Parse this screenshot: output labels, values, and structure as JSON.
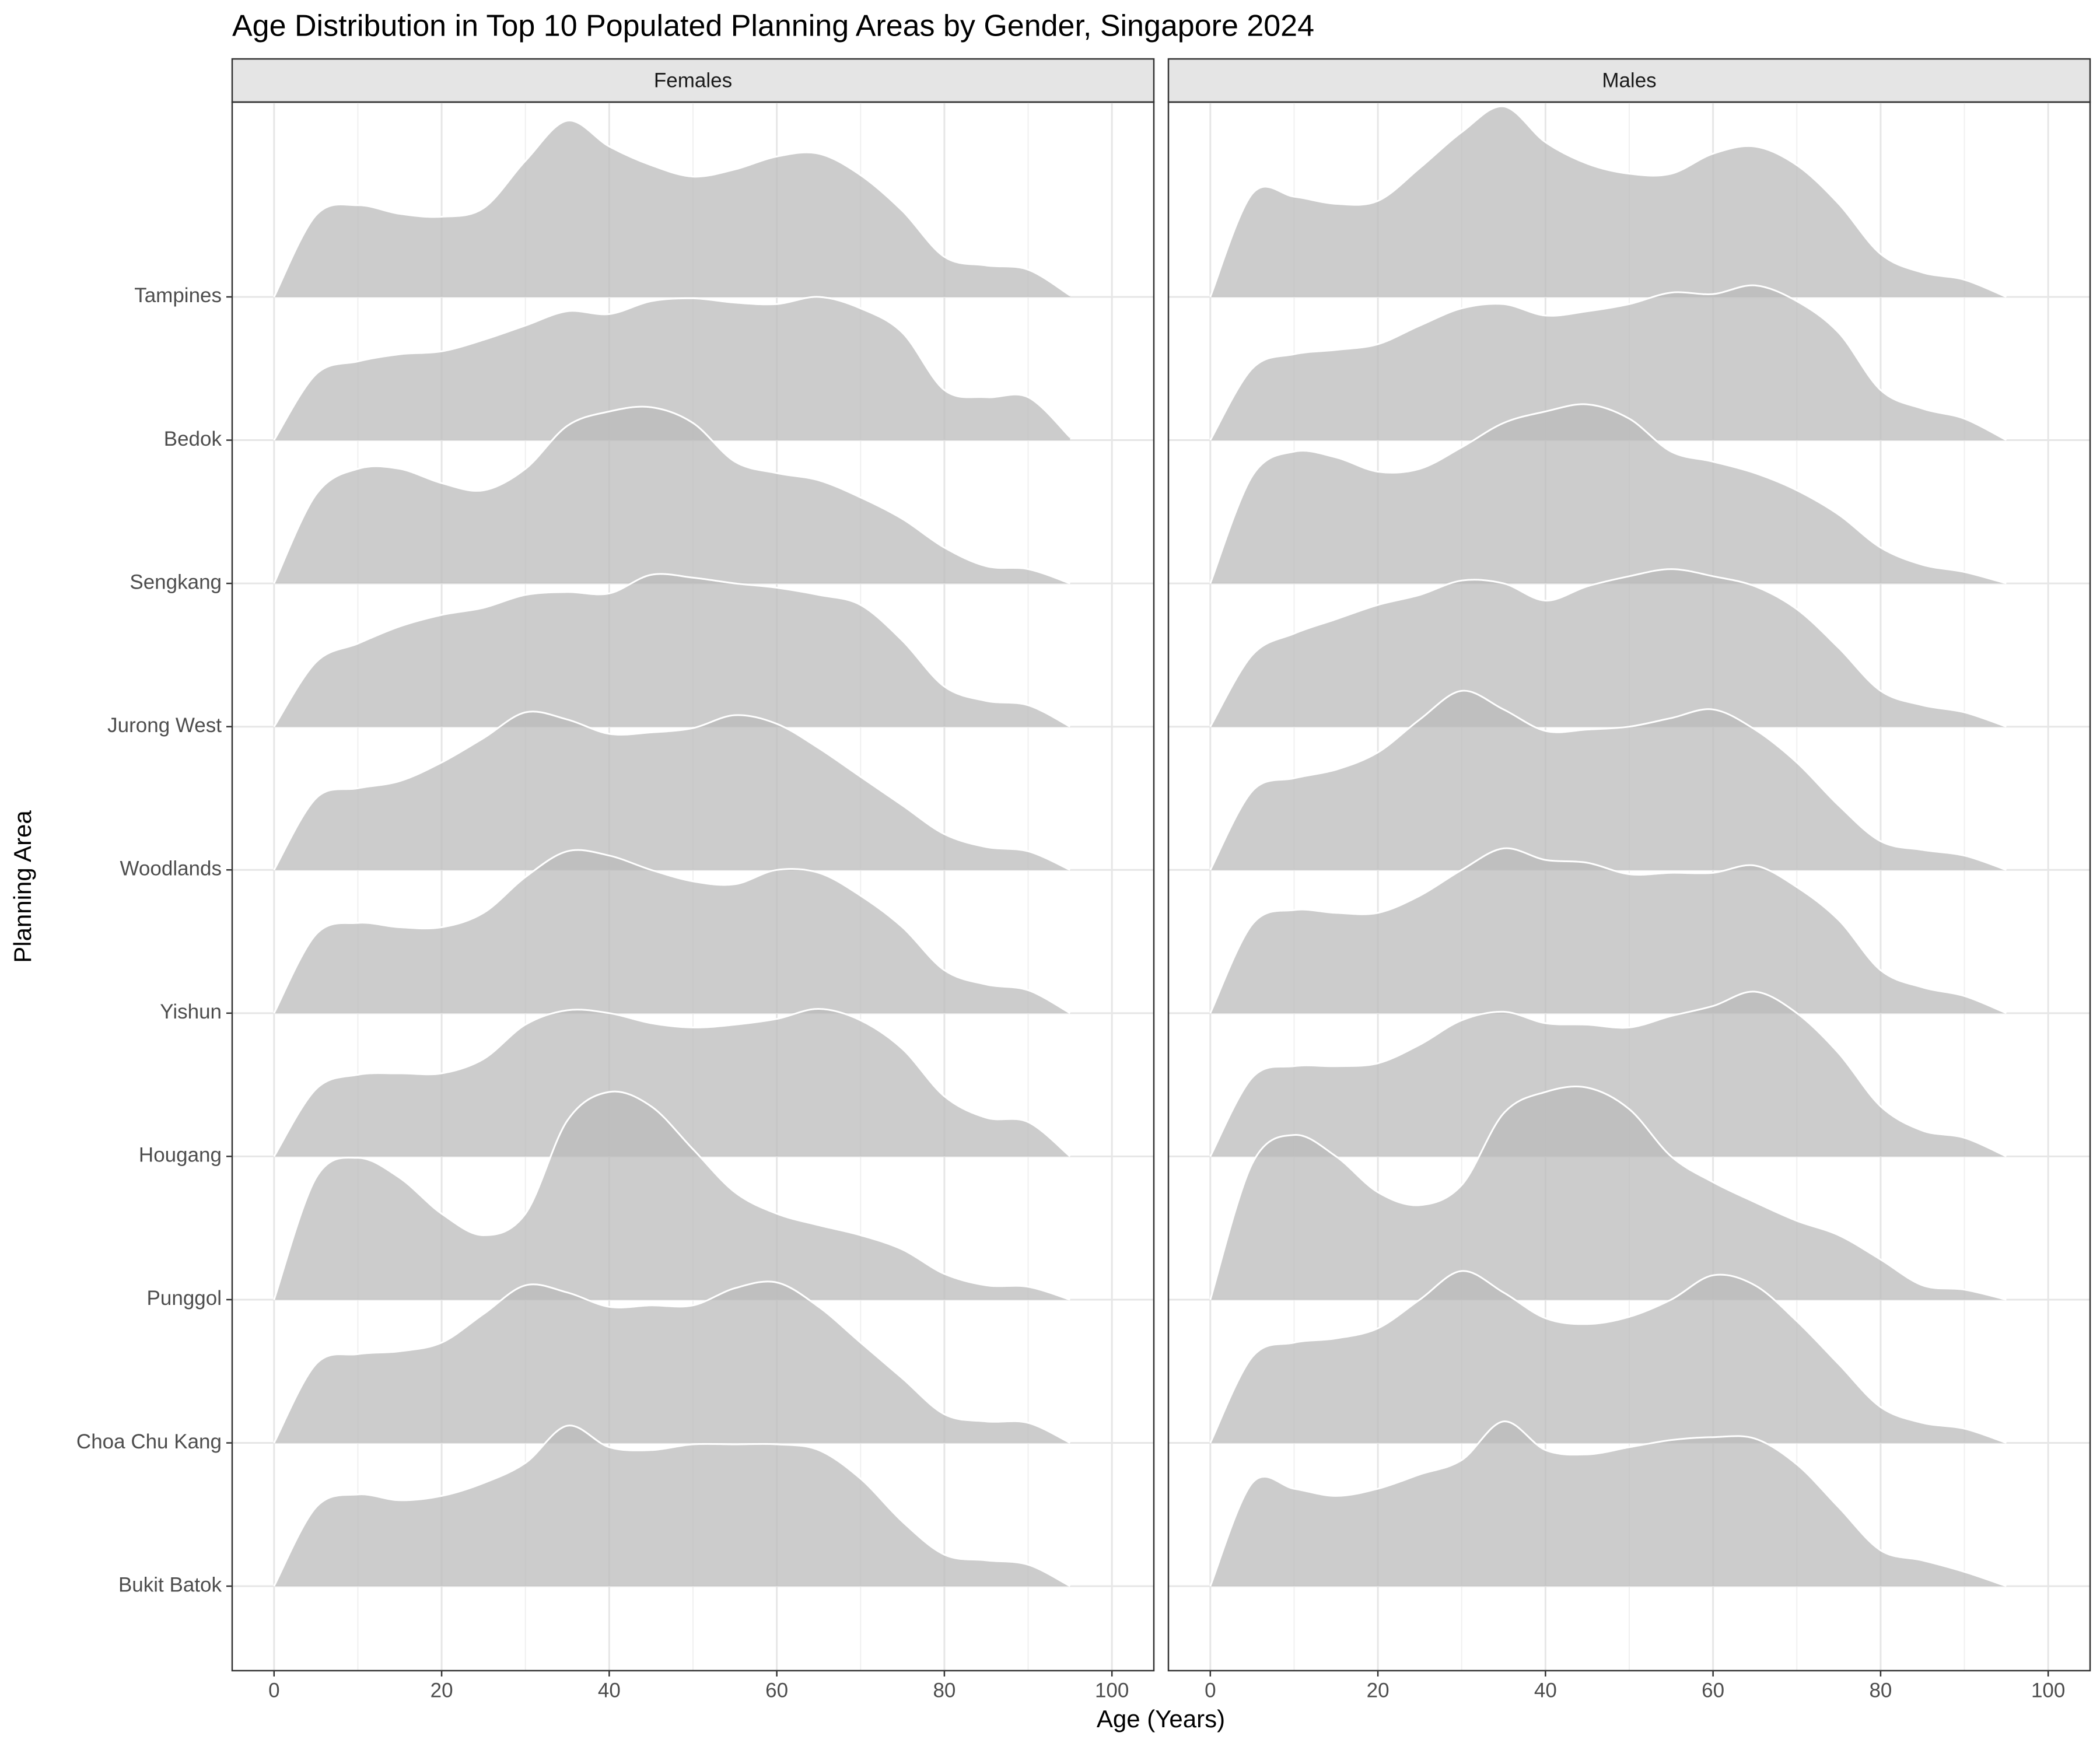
{
  "chart_data": {
    "type": "ridgeline",
    "title": "Age Distribution in Top 10 Populated Planning Areas by Gender, Singapore 2024",
    "xlabel": "Age (Years)",
    "ylabel": "Planning Area",
    "categories": [
      "Tampines",
      "Bedok",
      "Sengkang",
      "Jurong West",
      "Woodlands",
      "Yishun",
      "Hougang",
      "Punggol",
      "Choa Chu Kang",
      "Bukit Batok"
    ],
    "x": [
      0,
      5,
      10,
      15,
      20,
      25,
      30,
      35,
      40,
      45,
      50,
      55,
      60,
      65,
      70,
      75,
      80,
      85,
      90,
      95
    ],
    "xlim": [
      -5,
      105
    ],
    "xticks": [
      0,
      20,
      40,
      60,
      80,
      100
    ],
    "color": "#bbbbbb",
    "opacity": 0.75,
    "outline": "#ffffff",
    "grid": true,
    "facets": [
      {
        "name": "Females",
        "values": [
          [
            0,
            0.57,
            0.64,
            0.58,
            0.56,
            0.62,
            0.95,
            1.23,
            1.05,
            0.92,
            0.84,
            0.89,
            0.98,
            1.0,
            0.85,
            0.6,
            0.28,
            0.22,
            0.19,
            0.01
          ],
          [
            0,
            0.46,
            0.55,
            0.6,
            0.62,
            0.7,
            0.8,
            0.9,
            0.88,
            0.97,
            0.99,
            0.96,
            0.95,
            1.0,
            0.92,
            0.75,
            0.35,
            0.3,
            0.3,
            0.02
          ],
          [
            0,
            0.62,
            0.8,
            0.8,
            0.7,
            0.65,
            0.8,
            1.1,
            1.2,
            1.23,
            1.12,
            0.85,
            0.77,
            0.72,
            0.6,
            0.45,
            0.25,
            0.12,
            0.1,
            0
          ],
          [
            0,
            0.45,
            0.58,
            0.7,
            0.78,
            0.83,
            0.92,
            0.94,
            0.93,
            1.06,
            1.04,
            1.0,
            0.97,
            0.92,
            0.85,
            0.6,
            0.28,
            0.18,
            0.15,
            0
          ],
          [
            0,
            0.5,
            0.57,
            0.62,
            0.75,
            0.92,
            1.1,
            1.05,
            0.95,
            0.96,
            0.99,
            1.08,
            1.02,
            0.85,
            0.65,
            0.45,
            0.25,
            0.16,
            0.13,
            0
          ],
          [
            0,
            0.55,
            0.63,
            0.6,
            0.6,
            0.7,
            0.95,
            1.13,
            1.1,
            1.0,
            0.92,
            0.9,
            1.0,
            0.98,
            0.82,
            0.6,
            0.3,
            0.2,
            0.16,
            0
          ],
          [
            0,
            0.47,
            0.57,
            0.58,
            0.58,
            0.68,
            0.92,
            1.02,
            1.0,
            0.93,
            0.9,
            0.92,
            0.96,
            1.03,
            0.95,
            0.75,
            0.42,
            0.27,
            0.24,
            0
          ],
          [
            0,
            0.85,
            0.99,
            0.85,
            0.6,
            0.45,
            0.6,
            1.25,
            1.45,
            1.35,
            1.05,
            0.75,
            0.6,
            0.52,
            0.45,
            0.35,
            0.18,
            0.1,
            0.09,
            0
          ],
          [
            0,
            0.55,
            0.62,
            0.64,
            0.7,
            0.9,
            1.1,
            1.05,
            0.95,
            0.96,
            0.96,
            1.08,
            1.12,
            0.95,
            0.7,
            0.45,
            0.2,
            0.15,
            0.14,
            0
          ],
          [
            0,
            0.55,
            0.64,
            0.6,
            0.63,
            0.72,
            0.86,
            1.12,
            0.97,
            0.95,
            0.99,
            0.99,
            0.99,
            0.95,
            0.75,
            0.45,
            0.22,
            0.18,
            0.15,
            0
          ]
        ]
      },
      {
        "name": "Males",
        "values": [
          [
            0,
            0.72,
            0.7,
            0.65,
            0.67,
            0.9,
            1.15,
            1.33,
            1.08,
            0.93,
            0.86,
            0.86,
            1.0,
            1.05,
            0.92,
            0.65,
            0.3,
            0.17,
            0.12,
            0
          ],
          [
            0,
            0.5,
            0.6,
            0.63,
            0.67,
            0.8,
            0.92,
            0.95,
            0.87,
            0.9,
            0.95,
            1.03,
            1.02,
            1.08,
            0.97,
            0.75,
            0.35,
            0.22,
            0.15,
            0
          ],
          [
            0,
            0.75,
            0.92,
            0.88,
            0.78,
            0.8,
            0.95,
            1.12,
            1.2,
            1.25,
            1.15,
            0.92,
            0.85,
            0.77,
            0.65,
            0.48,
            0.25,
            0.13,
            0.08,
            0
          ],
          [
            0,
            0.5,
            0.65,
            0.75,
            0.85,
            0.92,
            1.02,
            1.0,
            0.88,
            0.98,
            1.05,
            1.1,
            1.05,
            0.98,
            0.82,
            0.55,
            0.25,
            0.15,
            0.1,
            0
          ],
          [
            0,
            0.55,
            0.64,
            0.7,
            0.82,
            1.05,
            1.25,
            1.12,
            0.97,
            0.98,
            1.0,
            1.06,
            1.12,
            0.98,
            0.75,
            0.45,
            0.2,
            0.14,
            0.1,
            0
          ],
          [
            0,
            0.62,
            0.72,
            0.7,
            0.7,
            0.82,
            1.0,
            1.15,
            1.07,
            1.05,
            0.97,
            0.98,
            0.98,
            1.03,
            0.88,
            0.65,
            0.3,
            0.18,
            0.12,
            0
          ],
          [
            0,
            0.55,
            0.63,
            0.63,
            0.65,
            0.78,
            0.95,
            1.01,
            0.93,
            0.92,
            0.9,
            0.98,
            1.05,
            1.15,
            1.0,
            0.72,
            0.35,
            0.18,
            0.13,
            0
          ],
          [
            0,
            0.95,
            1.15,
            1.0,
            0.75,
            0.66,
            0.8,
            1.3,
            1.45,
            1.48,
            1.33,
            1.0,
            0.82,
            0.68,
            0.55,
            0.45,
            0.28,
            0.1,
            0.07,
            0
          ],
          [
            0,
            0.6,
            0.7,
            0.73,
            0.8,
            1.0,
            1.2,
            1.05,
            0.87,
            0.83,
            0.88,
            1.0,
            1.17,
            1.1,
            0.85,
            0.55,
            0.25,
            0.14,
            0.1,
            0
          ],
          [
            0,
            0.72,
            0.68,
            0.63,
            0.68,
            0.78,
            0.88,
            1.15,
            0.95,
            0.92,
            0.97,
            1.02,
            1.04,
            1.03,
            0.85,
            0.55,
            0.25,
            0.18,
            0.1,
            0
          ]
        ]
      }
    ]
  }
}
